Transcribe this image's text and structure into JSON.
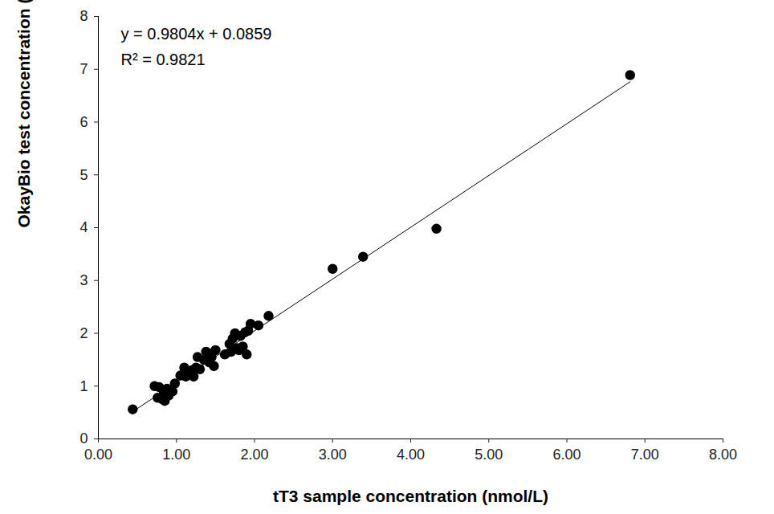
{
  "chart_data": {
    "type": "scatter",
    "x_label": "tT3 sample concentration (nmol/L)",
    "y_label": "OkayBio test concentration (nmol/L)",
    "annotations": [
      "y = 0.9804x + 0.0859",
      "R² = 0.9821"
    ],
    "color": "#000000",
    "marker": "circle",
    "x": [
      0.44,
      0.72,
      0.78,
      0.76,
      0.82,
      0.85,
      0.84,
      0.88,
      0.9,
      0.95,
      0.98,
      1.05,
      1.1,
      1.12,
      1.15,
      1.2,
      1.22,
      1.25,
      1.27,
      1.3,
      1.35,
      1.38,
      1.42,
      1.45,
      1.48,
      1.5,
      1.62,
      1.68,
      1.7,
      1.72,
      1.75,
      1.78,
      1.8,
      1.82,
      1.85,
      1.88,
      1.9,
      1.92,
      1.95,
      2.05,
      2.18,
      3.0,
      3.39,
      4.33,
      6.81
    ],
    "values": [
      0.56,
      1.0,
      0.98,
      0.78,
      0.75,
      0.72,
      0.88,
      0.95,
      0.82,
      0.9,
      1.05,
      1.2,
      1.35,
      1.18,
      1.28,
      1.3,
      1.18,
      1.35,
      1.55,
      1.32,
      1.5,
      1.65,
      1.45,
      1.55,
      1.38,
      1.68,
      1.6,
      1.8,
      1.65,
      1.9,
      2.0,
      1.72,
      1.68,
      1.95,
      1.75,
      2.02,
      1.6,
      2.05,
      2.18,
      2.15,
      2.33,
      3.22,
      3.45,
      3.98,
      6.89
    ],
    "trendline": {
      "slope": 0.9804,
      "intercept": 0.0859,
      "x": [
        0.44,
        6.81
      ]
    },
    "xlim": [
      0,
      8
    ],
    "xticks": [
      {
        "value": 0,
        "label": "0.00"
      },
      {
        "value": 1,
        "label": "1.00"
      },
      {
        "value": 2,
        "label": "2.00"
      },
      {
        "value": 3,
        "label": "3.00"
      },
      {
        "value": 4,
        "label": "4.00"
      },
      {
        "value": 5,
        "label": "5.00"
      },
      {
        "value": 6,
        "label": "6.00"
      },
      {
        "value": 7,
        "label": "7.00"
      },
      {
        "value": 8,
        "label": "8.00"
      }
    ],
    "ylim": [
      0,
      8
    ],
    "yticks": [
      0,
      1,
      2,
      3,
      4,
      5,
      6,
      7,
      8
    ],
    "grid": false
  }
}
